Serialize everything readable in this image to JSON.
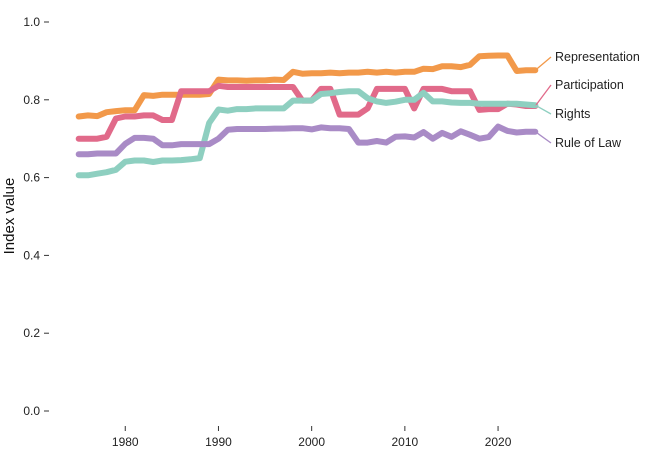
{
  "chart_data": {
    "type": "line",
    "title": "",
    "xlabel": "",
    "ylabel": "Index value",
    "xlim": [
      1974.5,
      2024.5
    ],
    "ylim": [
      0.0,
      1.0
    ],
    "x_ticks": [
      1980,
      1990,
      2000,
      2010,
      2020
    ],
    "y_ticks": [
      0.0,
      0.2,
      0.4,
      0.6,
      0.8,
      1.0
    ],
    "y_tick_labels": [
      "0.0",
      "0.2",
      "0.4",
      "0.6",
      "0.8",
      "1.0"
    ],
    "grid": false,
    "legend": "direct labels at right end of lines",
    "x": [
      1975,
      1976,
      1977,
      1978,
      1979,
      1980,
      1981,
      1982,
      1983,
      1984,
      1985,
      1986,
      1987,
      1988,
      1989,
      1990,
      1991,
      1992,
      1993,
      1994,
      1995,
      1996,
      1997,
      1998,
      1999,
      2000,
      2001,
      2002,
      2003,
      2004,
      2005,
      2006,
      2007,
      2008,
      2009,
      2010,
      2011,
      2012,
      2013,
      2014,
      2015,
      2016,
      2017,
      2018,
      2019,
      2020,
      2021,
      2022,
      2023,
      2024
    ],
    "series": [
      {
        "name": "Representation",
        "color": "#f2994a",
        "values": [
          0.757,
          0.76,
          0.758,
          0.768,
          0.771,
          0.773,
          0.773,
          0.812,
          0.81,
          0.813,
          0.813,
          0.813,
          0.813,
          0.813,
          0.815,
          0.852,
          0.85,
          0.85,
          0.849,
          0.85,
          0.85,
          0.852,
          0.851,
          0.872,
          0.867,
          0.868,
          0.868,
          0.87,
          0.868,
          0.87,
          0.87,
          0.872,
          0.87,
          0.872,
          0.87,
          0.872,
          0.872,
          0.88,
          0.879,
          0.886,
          0.886,
          0.884,
          0.89,
          0.912,
          0.913,
          0.914,
          0.914,
          0.874,
          0.876,
          0.876
        ]
      },
      {
        "name": "Participation",
        "color": "#e16a8a",
        "values": [
          0.7,
          0.7,
          0.7,
          0.705,
          0.752,
          0.757,
          0.757,
          0.76,
          0.76,
          0.748,
          0.748,
          0.822,
          0.822,
          0.822,
          0.822,
          0.836,
          0.833,
          0.833,
          0.833,
          0.833,
          0.833,
          0.833,
          0.833,
          0.833,
          0.798,
          0.798,
          0.828,
          0.828,
          0.762,
          0.762,
          0.762,
          0.778,
          0.828,
          0.828,
          0.828,
          0.828,
          0.778,
          0.828,
          0.828,
          0.828,
          0.822,
          0.822,
          0.822,
          0.774,
          0.776,
          0.776,
          0.79,
          0.788,
          0.784,
          0.784
        ]
      },
      {
        "name": "Rights",
        "color": "#8ecfc0",
        "values": [
          0.606,
          0.606,
          0.61,
          0.614,
          0.62,
          0.641,
          0.644,
          0.644,
          0.64,
          0.644,
          0.644,
          0.645,
          0.647,
          0.65,
          0.74,
          0.775,
          0.772,
          0.776,
          0.776,
          0.778,
          0.778,
          0.778,
          0.778,
          0.798,
          0.798,
          0.798,
          0.815,
          0.817,
          0.82,
          0.822,
          0.822,
          0.804,
          0.796,
          0.792,
          0.795,
          0.8,
          0.8,
          0.818,
          0.796,
          0.796,
          0.793,
          0.792,
          0.792,
          0.79,
          0.79,
          0.79,
          0.79,
          0.79,
          0.788,
          0.786
        ]
      },
      {
        "name": "Rule of Law",
        "color": "#a98bc6",
        "values": [
          0.66,
          0.66,
          0.662,
          0.662,
          0.662,
          0.687,
          0.702,
          0.702,
          0.7,
          0.683,
          0.683,
          0.686,
          0.686,
          0.686,
          0.686,
          0.7,
          0.723,
          0.725,
          0.725,
          0.725,
          0.725,
          0.726,
          0.726,
          0.727,
          0.727,
          0.724,
          0.729,
          0.727,
          0.727,
          0.725,
          0.69,
          0.69,
          0.694,
          0.69,
          0.705,
          0.706,
          0.703,
          0.717,
          0.7,
          0.715,
          0.705,
          0.719,
          0.71,
          0.7,
          0.704,
          0.731,
          0.72,
          0.716,
          0.718,
          0.718
        ]
      }
    ]
  }
}
